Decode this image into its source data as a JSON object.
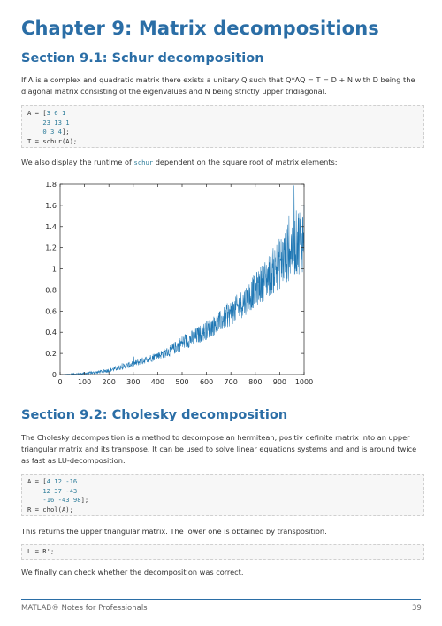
{
  "title": "Chapter 9: Matrix decompositions",
  "section1": {
    "heading": "Section 9.1: Schur decomposition",
    "para1": "If A is a complex and quadratic matrix there exists a unitary Q such that Q*AQ = T = D + N with D being the diagonal matrix consisting of the eigenvalues and N being strictly upper tridiagonal.",
    "code": {
      "line1_pre": "A = [",
      "line1_nums": "3 6 1",
      "line2": "23 13 1",
      "line3": "0 3 4",
      "line3_post": "];",
      "line4": "T = schur(A);"
    },
    "para2_pre": "We also display the runtime of ",
    "para2_code": "schur",
    "para2_post": " dependent on the square root of matrix elements:"
  },
  "chart_data": {
    "type": "line",
    "title": "",
    "xlabel": "",
    "ylabel": "",
    "xlim": [
      0,
      1000
    ],
    "ylim": [
      0,
      1.8
    ],
    "xticks": [
      "0",
      "100",
      "200",
      "300",
      "400",
      "500",
      "600",
      "700",
      "800",
      "900",
      "1000"
    ],
    "yticks": [
      "0",
      "0.2",
      "0.4",
      "0.6",
      "0.8",
      "1",
      "1.2",
      "1.4",
      "1.6",
      "1.8"
    ],
    "color": "#1f77b4",
    "series": [
      {
        "x": [
          10,
          50,
          100,
          150,
          200,
          250,
          300,
          350,
          400,
          450,
          500,
          550,
          600,
          650,
          700,
          750,
          800,
          850,
          900,
          950,
          1000
        ],
        "y": [
          0.0,
          0.005,
          0.01,
          0.02,
          0.04,
          0.07,
          0.1,
          0.14,
          0.18,
          0.22,
          0.3,
          0.35,
          0.42,
          0.49,
          0.58,
          0.68,
          0.8,
          0.92,
          1.05,
          1.2,
          1.32
        ],
        "spread": [
          0.0,
          0.005,
          0.01,
          0.015,
          0.02,
          0.025,
          0.03,
          0.035,
          0.04,
          0.05,
          0.07,
          0.08,
          0.09,
          0.1,
          0.12,
          0.14,
          0.16,
          0.2,
          0.25,
          0.3,
          0.35
        ]
      }
    ]
  },
  "section2": {
    "heading": "Section 9.2: Cholesky decomposition",
    "para1": "The Cholesky decomposition is a method to decompose an hermitean, positiv definite matrix into an upper triangular matrix and its transpose. It can be used to solve linear equations systems and and is around twice as fast as LU-decomposition.",
    "code": {
      "line1_pre": "A = [",
      "line1_nums": "4 12 -16",
      "line2": "12 37 -43",
      "line3": "-16 -43 98",
      "line3_post": "];",
      "line4": "R = chol(A);"
    },
    "para2": "This returns the upper triangular matrix. The lower one is obtained by transposition.",
    "code2": "L = R';",
    "para3": "We finally can check whether the decomposition was correct."
  },
  "footer": {
    "left": "MATLAB® Notes for Professionals",
    "page": "39"
  }
}
